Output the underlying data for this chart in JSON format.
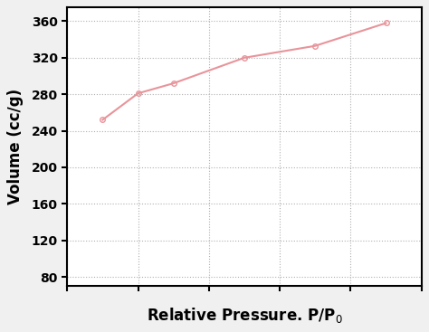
{
  "x": [
    0.1,
    0.2,
    0.3,
    0.5,
    0.7,
    0.9
  ],
  "y": [
    252,
    281,
    292,
    320,
    333,
    358
  ],
  "xlabel": "Relative Pressure. P/P$_0$",
  "ylabel": "Volume (cc/g)",
  "xlim": [
    0,
    1.0
  ],
  "ylim": [
    70,
    375
  ],
  "yticks": [
    80,
    120,
    160,
    200,
    240,
    280,
    320,
    360
  ],
  "xticks": [
    0.0,
    0.2,
    0.4,
    0.6,
    0.8,
    1.0
  ],
  "line_color": "#e8949a",
  "marker_color": "#e8949a",
  "marker": "o",
  "marker_size": 4,
  "linewidth": 1.5,
  "grid_color": "#b0b0b0",
  "background_color": "#f0f0f0",
  "plot_bg_color": "#ffffff",
  "axis_label_fontsize": 12,
  "axis_label_fontweight": "bold",
  "tick_fontsize": 10,
  "tick_fontweight": "bold"
}
